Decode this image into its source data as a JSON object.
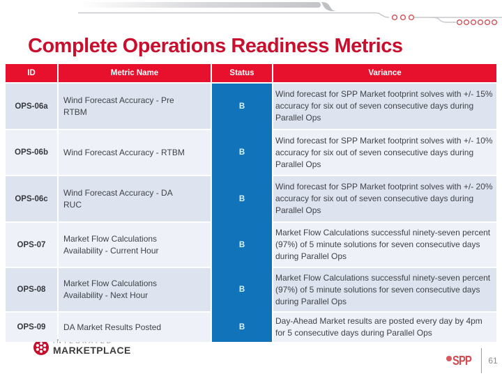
{
  "slide": {
    "title": "Complete Operations Readiness Metrics",
    "page_number": "61"
  },
  "table": {
    "columns": [
      "ID",
      "Metric Name",
      "Status",
      "Variance"
    ],
    "rows": [
      {
        "id": "OPS-06a",
        "metric": "Wind Forecast Accuracy - Pre RTBM",
        "status": "B",
        "variance": "Wind forecast for SPP Market footprint solves with +/- 15% accuracy for six out of seven consecutive days during Parallel Ops"
      },
      {
        "id": "OPS-06b",
        "metric": "Wind Forecast Accuracy - RTBM",
        "status": "B",
        "variance": "Wind forecast for SPP Market footprint solves with +/- 10% accuracy for six out of seven consecutive days during Parallel Ops"
      },
      {
        "id": "OPS-06c",
        "metric": "Wind Forecast Accuracy - DA RUC",
        "status": "B",
        "variance": "Wind forecast for SPP Market footprint solves with +/- 20% accuracy for six out of seven consecutive days during Parallel Ops"
      },
      {
        "id": "OPS-07",
        "metric": "Market Flow Calculations Availability - Current Hour",
        "status": "B",
        "variance": "Market Flow Calculations successful ninety-seven percent (97%) of 5 minute solutions for seven consecutive days during Parallel Ops"
      },
      {
        "id": "OPS-08",
        "metric": "Market Flow Calculations Availability - Next Hour",
        "status": "B",
        "variance": "Market Flow Calculations successful ninety-seven percent (97%) of 5 minute solutions for seven consecutive days during Parallel Ops"
      },
      {
        "id": "OPS-09",
        "metric": "DA Market Results Posted",
        "status": "B",
        "variance": "Day-Ahead Market results are posted every day by 4pm for 5 consecutive days during Parallel Ops"
      }
    ]
  },
  "footer": {
    "marketplace_logo": {
      "icon": "marketplace-emblem-icon",
      "line1": "INTEGRATED",
      "line2": "MARKETPLACE"
    },
    "spp_logo": {
      "icon": "spp-dot-icon",
      "text": "SPP"
    }
  },
  "colors": {
    "title_red": "#C8102E",
    "header_red": "#E8112D",
    "status_blue": "#1173B9",
    "row_dark": "#DEE3F0",
    "row_light": "#EEF1F8",
    "status_letter": "#D8F4FF",
    "body_text": "#3F4347"
  }
}
